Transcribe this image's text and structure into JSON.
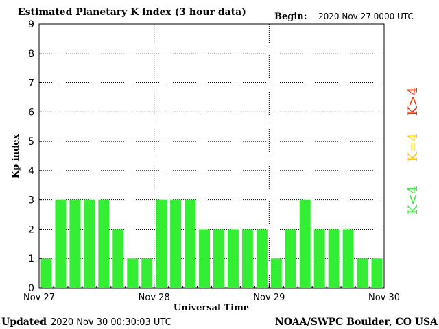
{
  "header": {
    "title": "Estimated Planetary K index (3 hour data)",
    "begin_label": "Begin:",
    "begin_value": "2020 Nov 27 0000 UTC"
  },
  "footer": {
    "updated_label": "Updated",
    "updated_value": "2020 Nov 30 00:30:03 UTC",
    "source": "NOAA/SWPC Boulder, CO USA"
  },
  "legend": {
    "items": [
      {
        "label": "K>4",
        "color": "#ff3300"
      },
      {
        "label": "K=4",
        "color": "#ffcc00"
      },
      {
        "label": "K<4",
        "color": "#33ee33"
      }
    ]
  },
  "chart_data": {
    "type": "bar",
    "title": "Estimated Planetary K index (3 hour data)",
    "xlabel": "Universal Time",
    "ylabel": "Kp index",
    "ylim": [
      0,
      9
    ],
    "yticks": [
      0,
      1,
      2,
      3,
      4,
      5,
      6,
      7,
      8,
      9
    ],
    "xticks": [
      "Nov 27",
      "Nov 28",
      "Nov 29",
      "Nov 30"
    ],
    "grid": true,
    "bar_color": "#33ee33",
    "series": [
      {
        "values": [
          1,
          3,
          3,
          3,
          3,
          2,
          1,
          1,
          3,
          3,
          3,
          2,
          2,
          2,
          2,
          2,
          1,
          2,
          3,
          2,
          2,
          2,
          1,
          1
        ]
      }
    ]
  }
}
